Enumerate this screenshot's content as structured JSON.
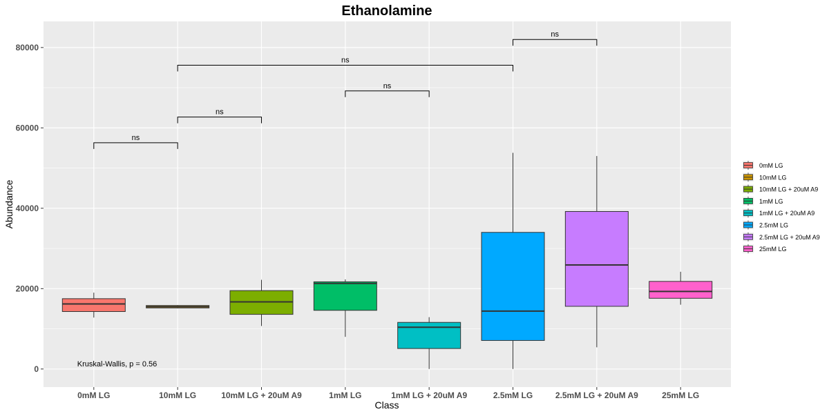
{
  "chart_data": {
    "type": "boxplot",
    "title": "Ethanolamine",
    "xlabel": "Class",
    "ylabel": "Abundance",
    "ylim": [
      -4500,
      86500
    ],
    "yticks": [
      0,
      20000,
      40000,
      60000,
      80000
    ],
    "ytick_labels": [
      "0",
      "20000",
      "40000",
      "60000",
      "80000"
    ],
    "grid": true,
    "legend_position": "right",
    "categories": [
      "0mM LG",
      "10mM LG",
      "10mM LG + 20uM A9",
      "1mM LG",
      "1mM LG + 20uM A9",
      "2.5mM LG",
      "2.5mM LG + 20uM A9",
      "25mM LG"
    ],
    "colors": [
      "#F8766D",
      "#CD9600",
      "#7CAE00",
      "#00BE67",
      "#00BFC4",
      "#00A9FF",
      "#C77CFF",
      "#FF61CC"
    ],
    "boxes": [
      {
        "whisker_low": 12800,
        "q1": 14300,
        "median": 16200,
        "q3": 17500,
        "whisker_high": 19000
      },
      {
        "whisker_low": 15100,
        "q1": 15200,
        "median": 15500,
        "q3": 15800,
        "whisker_high": 15900
      },
      {
        "whisker_low": 10700,
        "q1": 13600,
        "median": 16700,
        "q3": 19500,
        "whisker_high": 22200
      },
      {
        "whisker_low": 8000,
        "q1": 14600,
        "median": 21300,
        "q3": 21700,
        "whisker_high": 22300
      },
      {
        "whisker_low": 0,
        "q1": 5100,
        "median": 10400,
        "q3": 11600,
        "whisker_high": 12900
      },
      {
        "whisker_low": 0,
        "q1": 7100,
        "median": 14400,
        "q3": 34000,
        "whisker_high": 53800
      },
      {
        "whisker_low": 5400,
        "q1": 15600,
        "median": 25900,
        "q3": 39200,
        "whisker_high": 53000
      },
      {
        "whisker_low": 16000,
        "q1": 17600,
        "median": 19300,
        "q3": 21800,
        "whisker_high": 24200
      }
    ],
    "comparisons": [
      {
        "from": 0,
        "to": 1,
        "y": 56300,
        "label": "ns"
      },
      {
        "from": 1,
        "to": 2,
        "y": 62700,
        "label": "ns"
      },
      {
        "from": 3,
        "to": 4,
        "y": 69200,
        "label": "ns"
      },
      {
        "from": 1,
        "to": 5,
        "y": 75600,
        "label": "ns"
      },
      {
        "from": 5,
        "to": 6,
        "y": 82000,
        "label": "ns"
      }
    ],
    "annotation": {
      "text": "Kruskal-Wallis, p = 0.56",
      "x_category": 0,
      "y": 500
    }
  }
}
